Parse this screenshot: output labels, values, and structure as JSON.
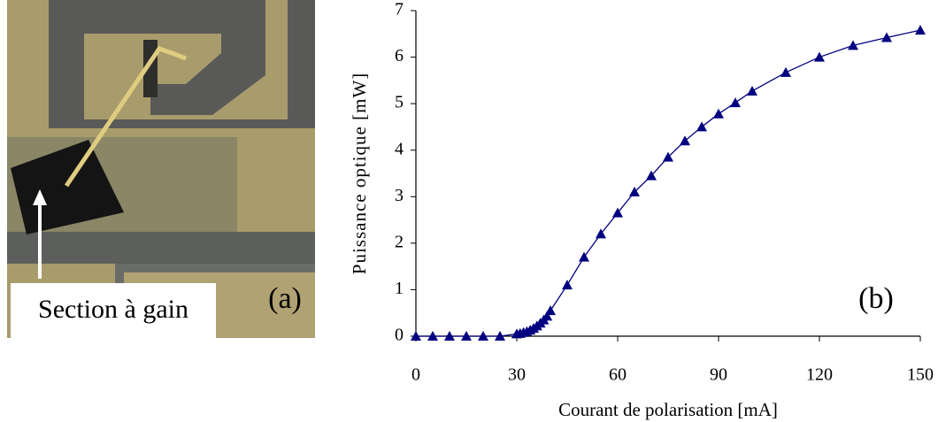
{
  "panel_a": {
    "label": "Section à gain",
    "tag": "(a)"
  },
  "chart_data": {
    "type": "line",
    "annotation": "(b)",
    "xlabel": "Courant de polarisation [mA]",
    "ylabel": "Puissance optique [mW]",
    "x": [
      0,
      5,
      10,
      15,
      20,
      25,
      30,
      31,
      32,
      33,
      34,
      35,
      36,
      37,
      38,
      39,
      40,
      45,
      50,
      55,
      60,
      65,
      70,
      75,
      80,
      85,
      90,
      95,
      100,
      110,
      120,
      130,
      140,
      150
    ],
    "values": [
      0,
      0,
      0,
      0,
      0,
      0,
      0.05,
      0.06,
      0.08,
      0.1,
      0.13,
      0.17,
      0.22,
      0.28,
      0.35,
      0.43,
      0.55,
      1.1,
      1.7,
      2.2,
      2.65,
      3.1,
      3.45,
      3.85,
      4.2,
      4.5,
      4.78,
      5.02,
      5.27,
      5.67,
      6.0,
      6.25,
      6.42,
      6.58
    ],
    "color": "#000080",
    "marker": "triangle",
    "xlim": [
      0,
      150
    ],
    "xticks": [
      0,
      30,
      60,
      90,
      120,
      150
    ],
    "ylim": [
      0,
      7
    ],
    "yticks": [
      0,
      1,
      2,
      3,
      4,
      5,
      6,
      7
    ]
  }
}
